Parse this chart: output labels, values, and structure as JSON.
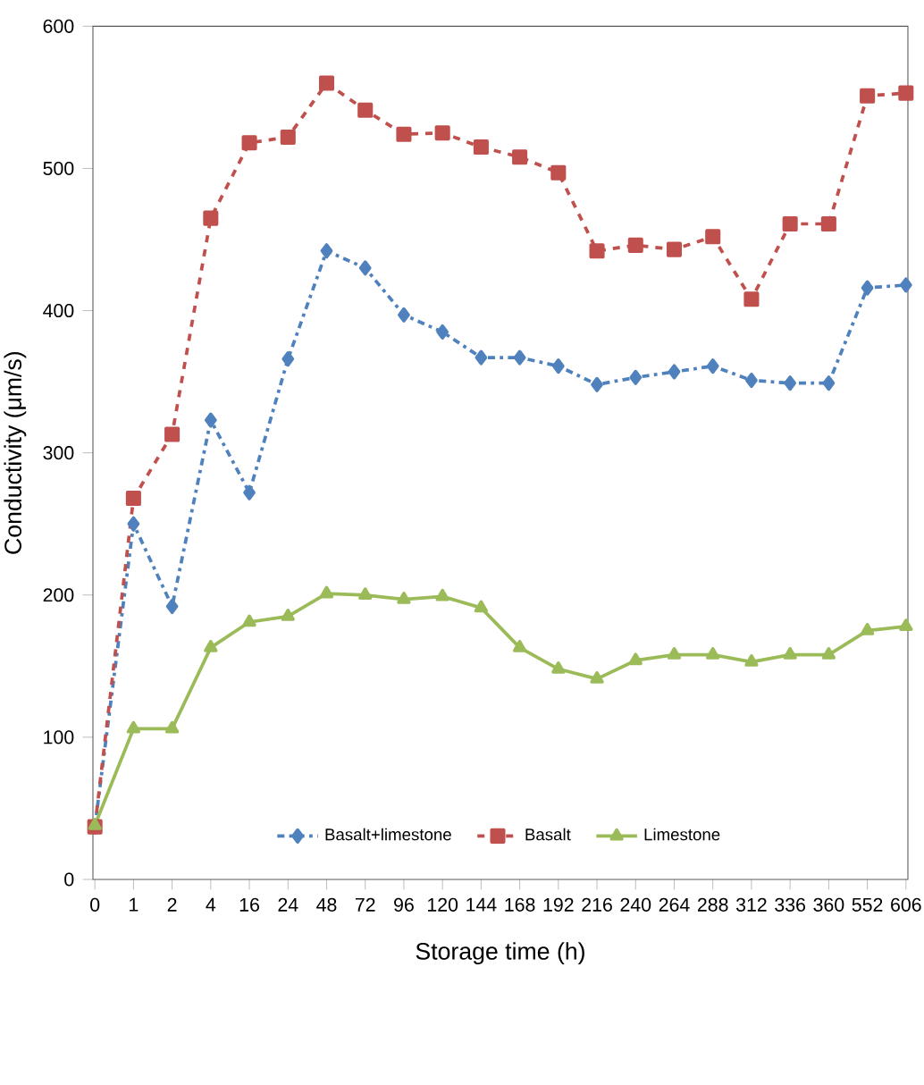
{
  "chart_data": {
    "type": "line",
    "xlabel": "Storage time (h)",
    "ylabel": "Conductivity (μm/s)",
    "categories": [
      "0",
      "1",
      "2",
      "4",
      "16",
      "24",
      "48",
      "72",
      "96",
      "120",
      "144",
      "168",
      "192",
      "216",
      "240",
      "264",
      "288",
      "312",
      "336",
      "360",
      "552",
      "606"
    ],
    "series": [
      {
        "name": "Basalt+limestone",
        "color": "#4f81bd",
        "marker": "diamond",
        "line_style": "dashdotted",
        "values": [
          37,
          250,
          192,
          323,
          272,
          366,
          442,
          430,
          397,
          385,
          367,
          367,
          361,
          348,
          353,
          357,
          361,
          351,
          349,
          349,
          416,
          418
        ]
      },
      {
        "name": "Basalt",
        "color": "#c0504d",
        "marker": "square",
        "line_style": "dashed",
        "values": [
          37,
          268,
          313,
          465,
          518,
          522,
          560,
          541,
          524,
          525,
          515,
          508,
          497,
          442,
          446,
          443,
          452,
          408,
          461,
          461,
          551,
          553
        ]
      },
      {
        "name": "Limestone",
        "color": "#9bbb59",
        "marker": "triangle",
        "line_style": "solid",
        "values": [
          38,
          106,
          106,
          163,
          181,
          185,
          201,
          200,
          197,
          199,
          191,
          163,
          148,
          141,
          154,
          158,
          158,
          153,
          158,
          158,
          175,
          178
        ]
      }
    ],
    "ylim": [
      0,
      600
    ],
    "yticks": [
      0,
      100,
      200,
      300,
      400,
      500,
      600
    ],
    "grid": false,
    "legend": "bottom"
  }
}
